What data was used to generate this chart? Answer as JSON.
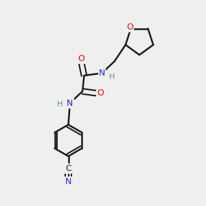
{
  "background_color": "#efefef",
  "bond_color": "#1a1a1a",
  "atom_colors": {
    "O": "#ee0000",
    "N": "#2222cc",
    "C": "#1a1a1a",
    "H": "#558888"
  },
  "figsize": [
    3.0,
    3.0
  ],
  "dpi": 100
}
